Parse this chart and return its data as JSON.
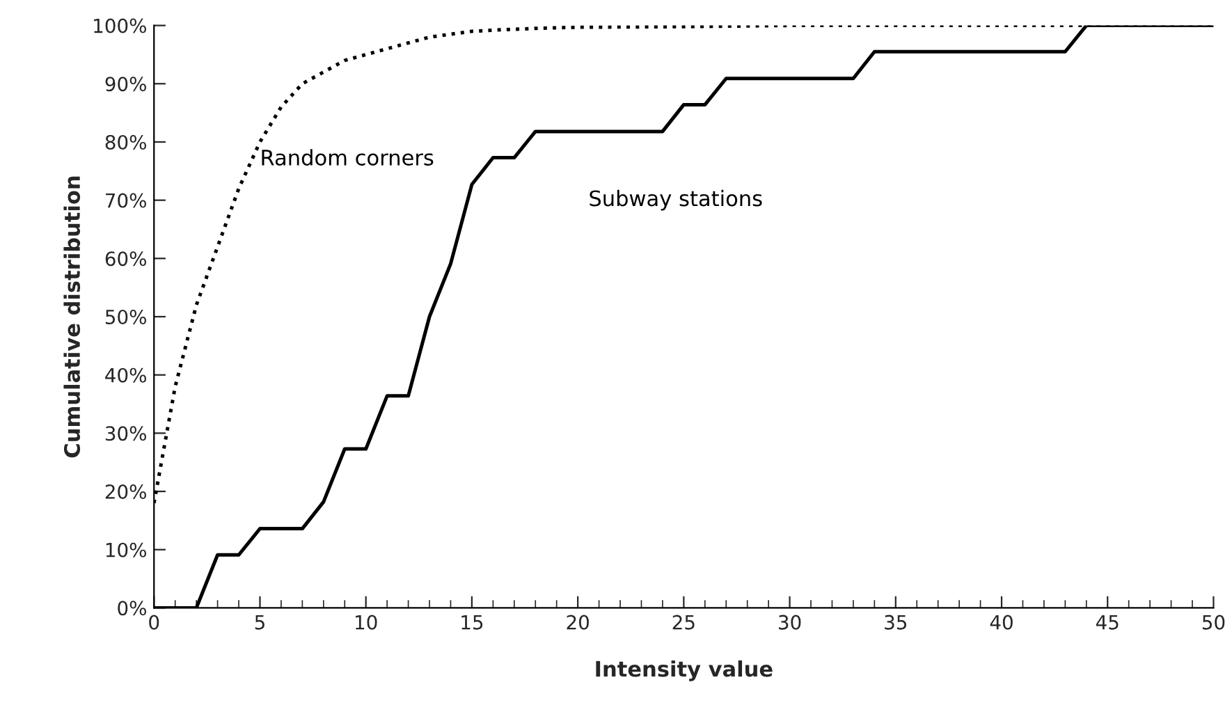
{
  "chart_data": {
    "type": "line",
    "xlabel": "Intensity value",
    "ylabel": "Cumulative distribution",
    "xlim": [
      0,
      50
    ],
    "ylim": [
      0,
      100
    ],
    "xticks": [
      0,
      5,
      10,
      15,
      20,
      25,
      30,
      35,
      40,
      45,
      50
    ],
    "yticks": [
      {
        "value": 0,
        "label": "0%"
      },
      {
        "value": 10,
        "label": "10%"
      },
      {
        "value": 20,
        "label": "20%"
      },
      {
        "value": 30,
        "label": "30%"
      },
      {
        "value": 40,
        "label": "40%"
      },
      {
        "value": 50,
        "label": "50%"
      },
      {
        "value": 60,
        "label": "60%"
      },
      {
        "value": 70,
        "label": "70%"
      },
      {
        "value": 80,
        "label": "80%"
      },
      {
        "value": 90,
        "label": "90%"
      },
      {
        "value": 100,
        "label": "100%"
      }
    ],
    "grid": false,
    "legend": false,
    "marker": "none",
    "series": [
      {
        "name": "Random corners",
        "color": "#000000",
        "line_style": "dotted",
        "x": [
          0,
          1,
          2,
          3,
          4,
          5,
          6,
          7,
          8,
          9,
          10,
          11,
          12,
          13,
          14,
          15,
          16,
          18,
          20,
          25,
          30,
          40,
          50
        ],
        "values": [
          18,
          38,
          52,
          62,
          72,
          80,
          86,
          90,
          92,
          94,
          95,
          96,
          97,
          98,
          98.5,
          99,
          99.2,
          99.5,
          99.7,
          99.8,
          100,
          100,
          100
        ]
      },
      {
        "name": "Subway stations",
        "color": "#000000",
        "line_style": "solid",
        "x": [
          0,
          1,
          2,
          3,
          4,
          5,
          6,
          7,
          8,
          9,
          10,
          11,
          12,
          13,
          14,
          15,
          16,
          17,
          18,
          19,
          20,
          21,
          22,
          23,
          24,
          25,
          26,
          27,
          28,
          29,
          30,
          31,
          32,
          33,
          34,
          35,
          36,
          37,
          38,
          39,
          40,
          41,
          42,
          43,
          44,
          45,
          46,
          47,
          48,
          49,
          50
        ],
        "values": [
          0,
          0,
          0,
          9.1,
          9.1,
          13.6,
          13.6,
          13.6,
          18.2,
          27.3,
          27.3,
          36.4,
          36.4,
          50,
          59.1,
          72.7,
          77.3,
          77.3,
          81.8,
          81.8,
          81.8,
          81.8,
          81.8,
          81.8,
          81.8,
          86.4,
          86.4,
          90.9,
          90.9,
          90.9,
          90.9,
          90.9,
          90.9,
          90.9,
          95.5,
          95.5,
          95.5,
          95.5,
          95.5,
          95.5,
          95.5,
          95.5,
          95.5,
          95.5,
          100,
          100,
          100,
          100,
          100,
          100,
          100
        ]
      }
    ]
  }
}
